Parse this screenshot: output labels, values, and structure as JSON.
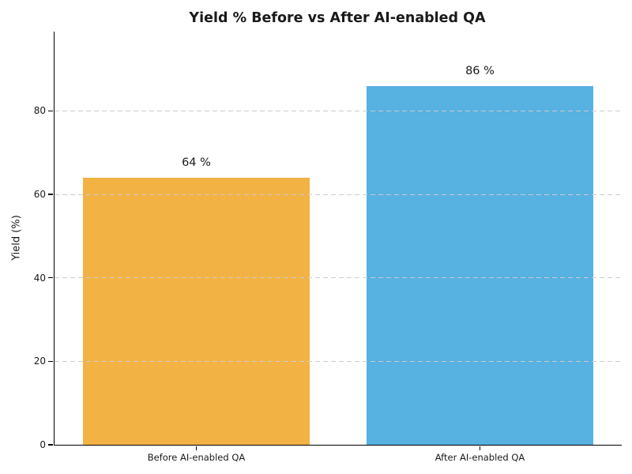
{
  "chart_data": {
    "type": "bar",
    "title": "Yield % Before vs After AI-enabled QA",
    "categories": [
      "Before AI-enabled QA",
      "After AI-enabled QA"
    ],
    "values": [
      64,
      86
    ],
    "bar_labels": [
      "64 %",
      "86 %"
    ],
    "bar_colors": [
      "#F2B344",
      "#57B1E1"
    ],
    "xlabel": "",
    "ylabel": "Yield (%)",
    "ylim": [
      0,
      99
    ],
    "yticks": [
      0,
      20,
      40,
      60,
      80
    ],
    "grid": "horizontal-dashed-over-bars",
    "grid_color": "#cccccc",
    "axis_color": "#000000",
    "text_color": "#1a1a1a",
    "background": "#ffffff",
    "legend": "none",
    "bar_width_fraction": 0.8
  }
}
